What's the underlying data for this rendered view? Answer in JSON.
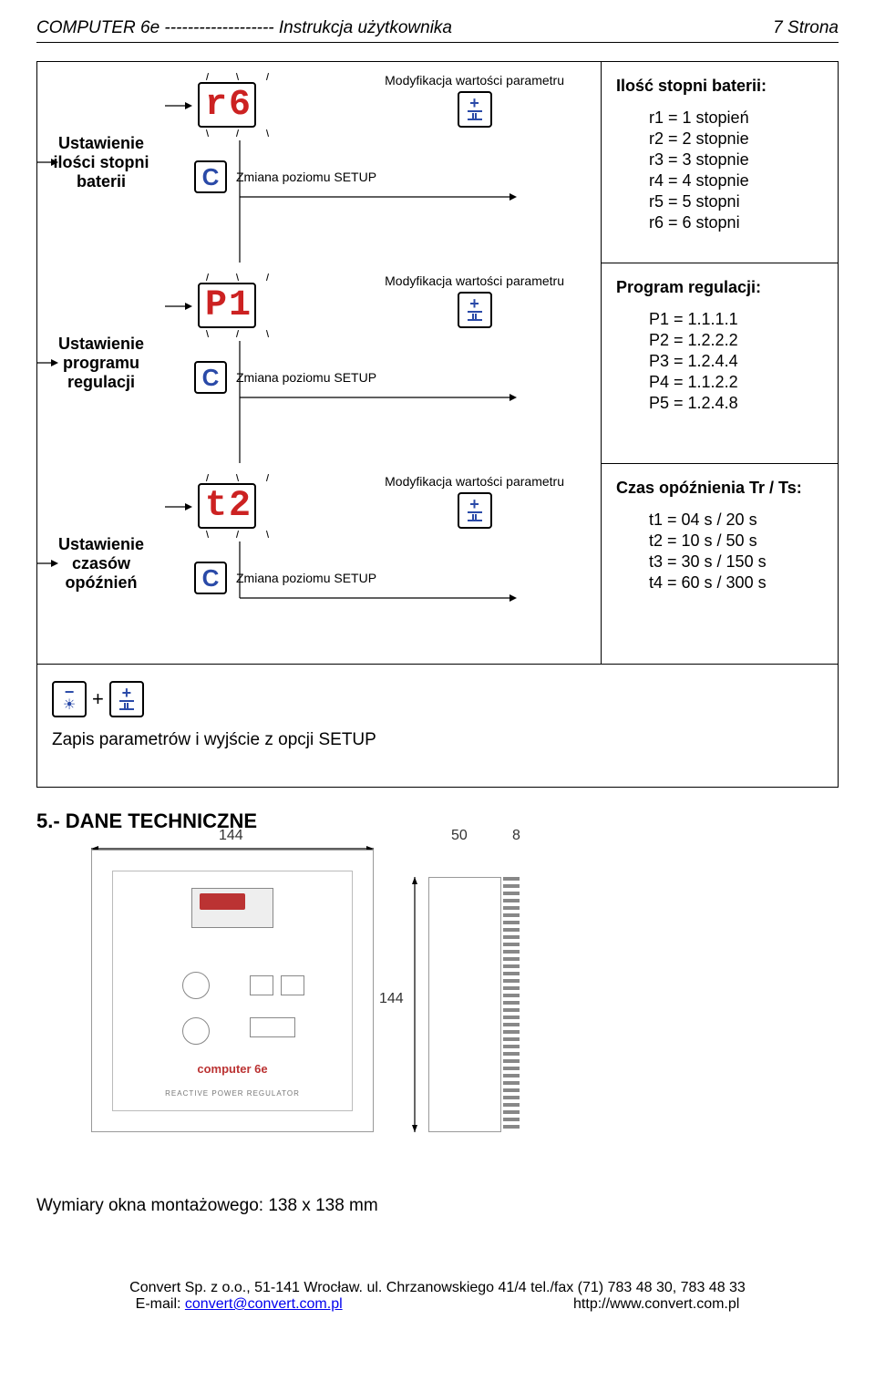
{
  "header": {
    "left": "COMPUTER  6e  -------------------   Instrukcja użytkownika",
    "right": "7 Strona"
  },
  "rows": [
    {
      "left": "Ustawienie ilości stopni baterii",
      "display": "r 6",
      "mod_label": "Modyfikacja wartości parametru",
      "setup_label": "Zmiana poziomu SETUP",
      "right_title": "Ilość stopni baterii:",
      "right_items": [
        "r1 = 1 stopień",
        "r2 = 2 stopnie",
        "r3 = 3 stopnie",
        "r4 = 4 stopnie",
        "r5 = 5 stopni",
        "r6 = 6 stopni"
      ]
    },
    {
      "left": "Ustawienie programu regulacji",
      "display": "P 1",
      "mod_label": "Modyfikacja wartości parametru",
      "setup_label": "Zmiana poziomu SETUP",
      "right_title": "Program regulacji:",
      "right_items": [
        "P1 = 1.1.1.1",
        "P2 = 1.2.2.2",
        "P3 = 1.2.4.4",
        "P4 = 1.1.2.2",
        "P5 = 1.2.4.8"
      ]
    },
    {
      "left": "Ustawienie czasów opóźnień",
      "display": "t 2",
      "mod_label": "Modyfikacja wartości parametru",
      "setup_label": "Zmiana poziomu SETUP",
      "right_title": "Czas opóźnienia Tr / Ts:",
      "right_items": [
        "t1 = 04 s /   20 s",
        "t2 = 10 s /   50 s",
        "t3 = 30 s / 150 s",
        "t4 = 60 s / 300 s"
      ]
    }
  ],
  "save_row": "Zapis parametrów i wyjście z opcji SETUP",
  "section_title": "5.- DANE TECHNICZNE",
  "tech": {
    "dim_w": "144",
    "dim_d": "50",
    "dim_t": "8",
    "dim_h": "144",
    "brand": "computer 6e",
    "sub": "REACTIVE POWER REGULATOR"
  },
  "dim_text": "Wymiary okna montażowego: 138 x 138 mm",
  "footer": {
    "line1": "Convert Sp. z o.o., 51-141 Wrocław. ul. Chrzanowskiego 41/4 tel./fax (71) 783 48 30, 783 48 33",
    "email_label": "E-mail: ",
    "email": "convert@convert.com.pl",
    "spacer": "                                                         ",
    "url": "http://www.convert.com.pl"
  }
}
